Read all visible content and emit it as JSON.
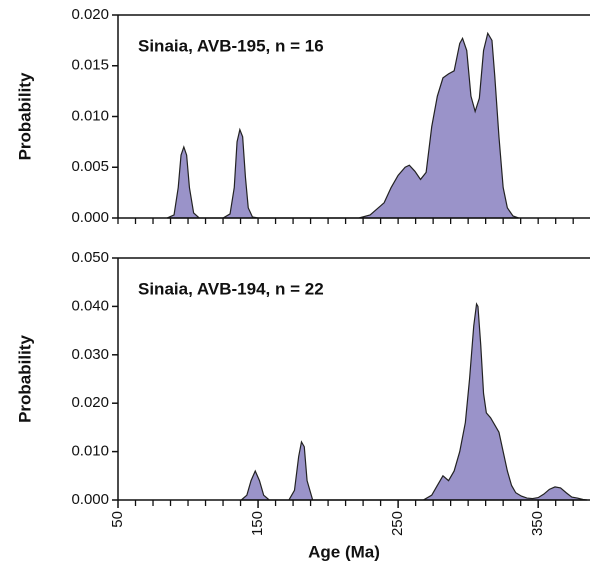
{
  "chart_data": [
    {
      "type": "area",
      "title": "Sinaia, AVB-195, n = 16",
      "ylabel": "Probability",
      "x": [
        85,
        90,
        93,
        95,
        97,
        99,
        101,
        104,
        108,
        125,
        130,
        133,
        135,
        137,
        139,
        141,
        143,
        146,
        150,
        222,
        230,
        240,
        245,
        250,
        255,
        258,
        262,
        266,
        270,
        274,
        278,
        282,
        286,
        290,
        294,
        296,
        299,
        302,
        305,
        308,
        311,
        314,
        317,
        319,
        322,
        325,
        328,
        332,
        336
      ],
      "series": [
        {
          "color": "#9a93c9",
          "values": [
            0,
            0.0003,
            0.003,
            0.0062,
            0.007,
            0.0062,
            0.003,
            0.0005,
            0,
            0,
            0.0004,
            0.003,
            0.0075,
            0.0087,
            0.008,
            0.004,
            0.001,
            0.0001,
            0,
            0,
            0.0003,
            0.0015,
            0.003,
            0.0042,
            0.005,
            0.0052,
            0.0046,
            0.0038,
            0.0045,
            0.009,
            0.012,
            0.0138,
            0.0142,
            0.0145,
            0.0172,
            0.0177,
            0.0165,
            0.012,
            0.0105,
            0.0118,
            0.0165,
            0.0182,
            0.0175,
            0.014,
            0.008,
            0.003,
            0.001,
            0.0002,
            0
          ]
        }
      ],
      "xlim": [
        50,
        387
      ],
      "xminorticks": [
        50,
        62.5,
        75,
        87.5,
        100,
        112.5,
        125,
        137.5,
        150,
        162.5,
        175,
        187.5,
        200,
        212.5,
        225,
        237.5,
        250,
        262.5,
        275,
        287.5,
        300,
        312.5,
        325,
        337.5,
        350,
        362.5,
        375
      ],
      "ylim": [
        0,
        0.02
      ],
      "yticks": [
        {
          "value": 0,
          "label": "0.000"
        },
        {
          "value": 0.005,
          "label": "0.005"
        },
        {
          "value": 0.01,
          "label": "0.010"
        },
        {
          "value": 0.015,
          "label": "0.015"
        },
        {
          "value": 0.02,
          "label": "0.020"
        }
      ]
    },
    {
      "type": "area",
      "title": "Sinaia, AVB-194, n = 22",
      "ylabel": "Probability",
      "xlabel": "Age (Ma)",
      "x": [
        138,
        142,
        145,
        148,
        151,
        154,
        158,
        172,
        176,
        179,
        181,
        183,
        185,
        189,
        268,
        274,
        278,
        282,
        286,
        290,
        294,
        298,
        301,
        304,
        306,
        307,
        309,
        311,
        313,
        316,
        319,
        322,
        325,
        328,
        331,
        334,
        338,
        342,
        346,
        350,
        354,
        358,
        362,
        366,
        370,
        374,
        378,
        382,
        385
      ],
      "series": [
        {
          "color": "#9a93c9",
          "values": [
            0,
            0.001,
            0.004,
            0.006,
            0.004,
            0.001,
            0,
            0,
            0.002,
            0.009,
            0.012,
            0.011,
            0.004,
            0,
            0,
            0.001,
            0.003,
            0.005,
            0.004,
            0.006,
            0.01,
            0.016,
            0.025,
            0.036,
            0.0405,
            0.04,
            0.032,
            0.022,
            0.018,
            0.017,
            0.0155,
            0.014,
            0.01,
            0.006,
            0.003,
            0.0015,
            0.0008,
            0.0004,
            0.0003,
            0.0005,
            0.0012,
            0.0022,
            0.0027,
            0.0025,
            0.0015,
            0.0006,
            0.0004,
            0.0001,
            0
          ]
        }
      ],
      "xlim": [
        50,
        387
      ],
      "xticks": [
        50,
        150,
        250,
        350
      ],
      "xminorticks": [
        62.5,
        75,
        87.5,
        100,
        112.5,
        125,
        137.5,
        162.5,
        175,
        187.5,
        200,
        212.5,
        225,
        237.5,
        262.5,
        275,
        287.5,
        300,
        312.5,
        325,
        337.5,
        362.5,
        375
      ],
      "ylim": [
        0,
        0.05
      ],
      "yticks": [
        {
          "value": 0,
          "label": "0.000"
        },
        {
          "value": 0.01,
          "label": "0.010"
        },
        {
          "value": 0.02,
          "label": "0.020"
        },
        {
          "value": 0.03,
          "label": "0.030"
        },
        {
          "value": 0.04,
          "label": "0.040"
        },
        {
          "value": 0.05,
          "label": "0.050"
        }
      ]
    }
  ]
}
